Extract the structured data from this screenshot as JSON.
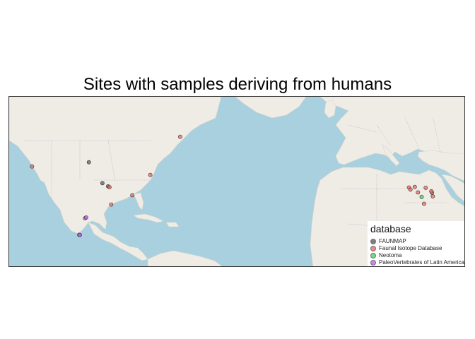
{
  "title": "Sites with samples deriving from humans",
  "colors": {
    "ocean": "#a8d0de",
    "land": "#efece6",
    "land_edge": "#d9d3c8",
    "borders": "#c7a6c8",
    "roads": "#f3d9a0"
  },
  "legend": {
    "title": "database",
    "items": [
      {
        "label": "FAUNMAP",
        "color": "#555555"
      },
      {
        "label": "Faunal Isotope Database",
        "color": "#f0605a"
      },
      {
        "label": "Neotoma",
        "color": "#3fcf5a"
      },
      {
        "label": "PaleoVertebrates of Latin America",
        "color": "#c25be8"
      }
    ]
  },
  "map_extent": {
    "lon": [
      -130,
      58
    ],
    "lat": [
      5.5,
      62
    ]
  },
  "sites": [
    {
      "lon": -120.6,
      "lat": 44.2,
      "db": 1
    },
    {
      "lon": -97.2,
      "lat": 45.5,
      "db": 0
    },
    {
      "lon": -91.6,
      "lat": 38.8,
      "db": 0
    },
    {
      "lon": -89.3,
      "lat": 37.7,
      "db": 0
    },
    {
      "lon": -88.7,
      "lat": 37.4,
      "db": 1
    },
    {
      "lon": -88.0,
      "lat": 31.2,
      "db": 1
    },
    {
      "lon": -79.3,
      "lat": 34.6,
      "db": 1
    },
    {
      "lon": -71.9,
      "lat": 41.5,
      "db": 1
    },
    {
      "lon": -59.6,
      "lat": 52.7,
      "db": 1
    },
    {
      "lon": -98.8,
      "lat": 26.0,
      "db": 3
    },
    {
      "lon": -98.3,
      "lat": 26.3,
      "db": 3
    },
    {
      "lon": -101.2,
      "lat": 19.4,
      "db": 3
    },
    {
      "lon": -100.9,
      "lat": 19.3,
      "db": 3
    },
    {
      "lon": 34.6,
      "lat": 37.3,
      "db": 1
    },
    {
      "lon": 37.0,
      "lat": 37.5,
      "db": 1
    },
    {
      "lon": 35.2,
      "lat": 36.6,
      "db": 1
    },
    {
      "lon": 38.3,
      "lat": 35.6,
      "db": 1
    },
    {
      "lon": 41.5,
      "lat": 37.2,
      "db": 1
    },
    {
      "lon": 44.1,
      "lat": 35.5,
      "db": 1
    },
    {
      "lon": 43.8,
      "lat": 36.0,
      "db": 1
    },
    {
      "lon": 44.4,
      "lat": 34.2,
      "db": 1
    },
    {
      "lon": 39.8,
      "lat": 34.0,
      "db": 2
    },
    {
      "lon": 40.8,
      "lat": 31.5,
      "db": 1
    }
  ]
}
